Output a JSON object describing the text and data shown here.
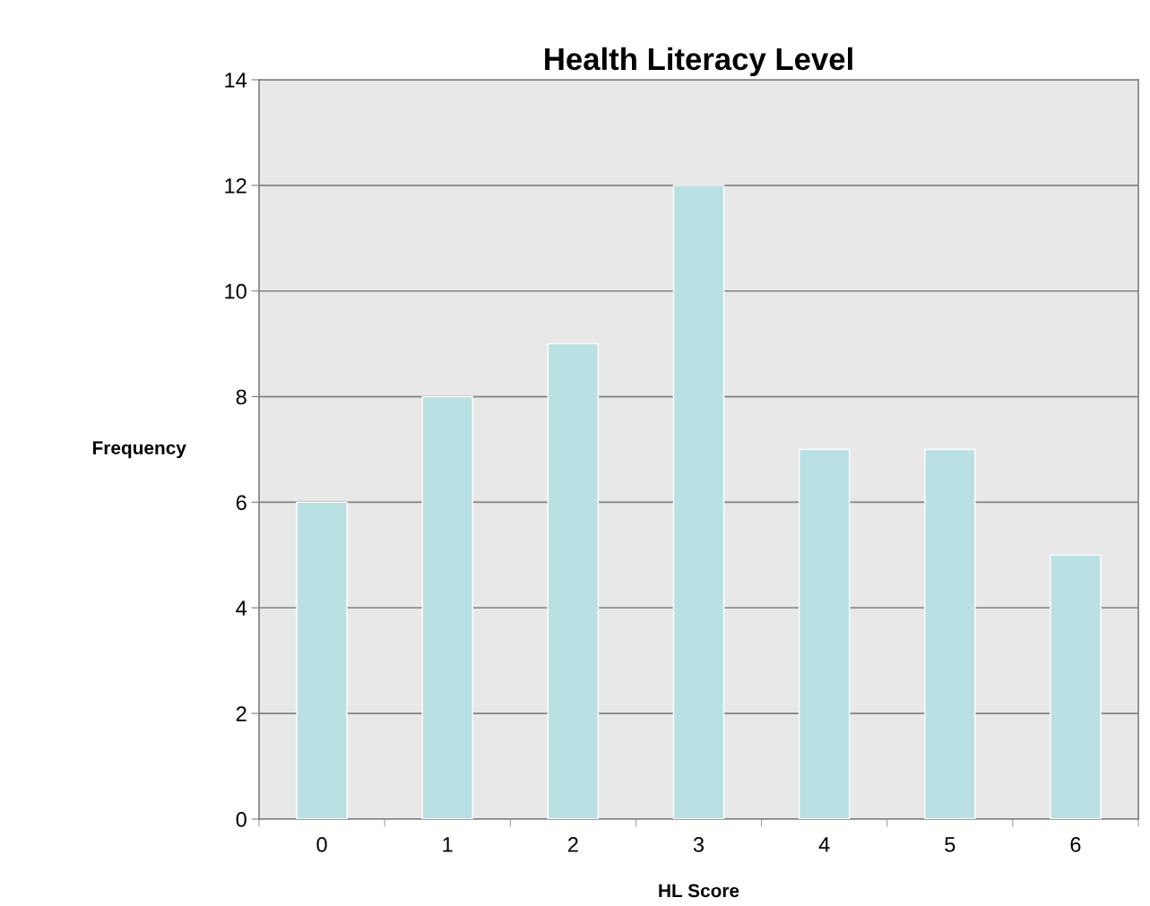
{
  "chart_data": {
    "type": "bar",
    "title": "Health Literacy Level",
    "xlabel": "HL Score",
    "ylabel": "Frequency",
    "categories": [
      "0",
      "1",
      "2",
      "3",
      "4",
      "5",
      "6"
    ],
    "values": [
      6,
      8,
      9,
      12,
      7,
      7,
      5
    ],
    "color": "#b9e0e3",
    "ylim": [
      0,
      14
    ],
    "yticks": [
      0,
      2,
      4,
      6,
      8,
      10,
      12,
      14
    ],
    "grid": "y",
    "legend": false
  }
}
